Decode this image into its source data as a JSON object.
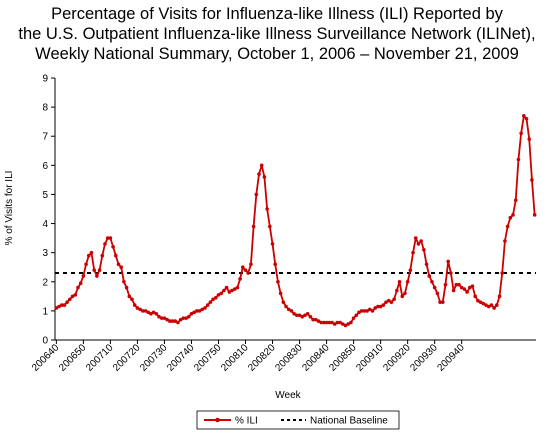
{
  "chart_data": {
    "type": "line",
    "title_lines": [
      "Percentage of Visits for Influenza-like Illness (ILI) Reported by",
      "the U.S. Outpatient Influenza-like Illness Surveillance Network (ILINet),",
      "Weekly National Summary, October 1, 2006 – November 21, 2009"
    ],
    "xlabel": "Week",
    "ylabel": "% of Visits for ILI",
    "ylim": [
      0,
      9
    ],
    "yticks": [
      0,
      1,
      2,
      3,
      4,
      5,
      6,
      7,
      8,
      9
    ],
    "xtick_labels": [
      "200640",
      "200650",
      "200710",
      "200720",
      "200730",
      "200740",
      "200750",
      "200810",
      "200820",
      "200830",
      "200840",
      "200850",
      "200910",
      "200920",
      "200930",
      "200940"
    ],
    "grid": false,
    "legend_position": "bottom",
    "series": [
      {
        "name": "% ILI",
        "color": "#cc0000",
        "values": [
          1.1,
          1.15,
          1.2,
          1.2,
          1.3,
          1.4,
          1.5,
          1.55,
          1.8,
          1.95,
          2.2,
          2.6,
          2.9,
          3.0,
          2.4,
          2.2,
          2.4,
          2.9,
          3.3,
          3.5,
          3.5,
          3.2,
          2.9,
          2.6,
          2.5,
          2.0,
          1.8,
          1.5,
          1.4,
          1.2,
          1.1,
          1.05,
          1.0,
          1.0,
          0.95,
          0.9,
          0.95,
          0.9,
          0.8,
          0.75,
          0.75,
          0.7,
          0.65,
          0.65,
          0.65,
          0.6,
          0.7,
          0.75,
          0.75,
          0.8,
          0.9,
          0.95,
          1.0,
          1.0,
          1.05,
          1.1,
          1.2,
          1.3,
          1.4,
          1.45,
          1.55,
          1.6,
          1.7,
          1.8,
          1.65,
          1.7,
          1.75,
          1.8,
          2.1,
          2.5,
          2.4,
          2.3,
          2.6,
          3.9,
          5.0,
          5.7,
          6.0,
          5.6,
          4.5,
          3.9,
          3.3,
          2.6,
          2.0,
          1.6,
          1.3,
          1.15,
          1.05,
          1.0,
          0.9,
          0.85,
          0.85,
          0.8,
          0.85,
          0.9,
          0.8,
          0.7,
          0.7,
          0.65,
          0.6,
          0.6,
          0.6,
          0.6,
          0.6,
          0.55,
          0.6,
          0.6,
          0.55,
          0.5,
          0.55,
          0.6,
          0.75,
          0.85,
          0.95,
          1.0,
          1.0,
          1.0,
          1.05,
          1.0,
          1.1,
          1.15,
          1.15,
          1.2,
          1.3,
          1.35,
          1.3,
          1.4,
          1.7,
          2.0,
          1.5,
          1.6,
          2.0,
          2.4,
          3.0,
          3.5,
          3.3,
          3.4,
          3.1,
          2.6,
          2.2,
          2.0,
          1.8,
          1.6,
          1.3,
          1.3,
          1.9,
          2.7,
          2.3,
          1.7,
          1.9,
          1.9,
          1.8,
          1.75,
          1.65,
          1.8,
          1.85,
          1.5,
          1.35,
          1.3,
          1.25,
          1.2,
          1.15,
          1.2,
          1.1,
          1.2,
          1.5,
          2.3,
          3.4,
          3.9,
          4.2,
          4.3,
          4.8,
          6.2,
          7.1,
          7.7,
          7.6,
          6.9,
          5.5,
          4.3
        ]
      },
      {
        "name": "National Baseline",
        "color": "#000000",
        "values": [
          2.3
        ]
      }
    ]
  }
}
